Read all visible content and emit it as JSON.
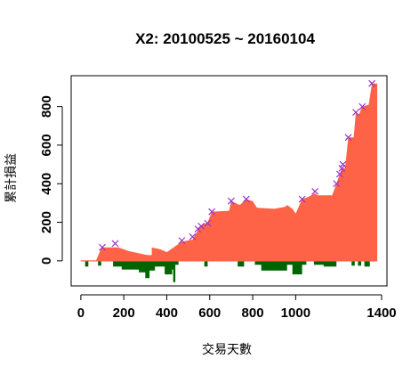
{
  "chart_data": {
    "type": "area",
    "title": "X2: 20100525 ~ 20160104",
    "xlabel": "交易天數",
    "ylabel": "累計損益",
    "x_ticks": [
      0,
      200,
      400,
      600,
      800,
      1000,
      1400
    ],
    "x_tick_labels": [
      "0",
      "200",
      "400",
      "600",
      "800",
      "1000",
      "1400"
    ],
    "y_ticks": [
      0,
      200,
      400,
      600,
      800
    ],
    "y_tick_labels": [
      "0",
      "200",
      "400",
      "600",
      "800"
    ],
    "xlim": [
      -45,
      1425
    ],
    "ylim": [
      -130,
      960
    ],
    "grid": false,
    "colors": {
      "cumulative_fill": "#ff6347",
      "drawdown_fill": "#006400",
      "peak_marker": "#9932cc",
      "axis": "#000000"
    },
    "cumulative": [
      [
        0,
        0
      ],
      [
        40,
        0
      ],
      [
        70,
        0
      ],
      [
        95,
        65
      ],
      [
        100,
        70
      ],
      [
        160,
        70
      ],
      [
        175,
        70
      ],
      [
        225,
        50
      ],
      [
        310,
        30
      ],
      [
        330,
        30
      ],
      [
        330,
        70
      ],
      [
        370,
        60
      ],
      [
        400,
        45
      ],
      [
        470,
        100
      ],
      [
        520,
        110
      ],
      [
        545,
        160
      ],
      [
        560,
        185
      ],
      [
        590,
        200
      ],
      [
        610,
        255
      ],
      [
        690,
        260
      ],
      [
        700,
        310
      ],
      [
        740,
        290
      ],
      [
        770,
        320
      ],
      [
        800,
        310
      ],
      [
        820,
        275
      ],
      [
        900,
        270
      ],
      [
        950,
        280
      ],
      [
        960,
        290
      ],
      [
        985,
        270
      ],
      [
        1000,
        245
      ],
      [
        1030,
        320
      ],
      [
        1055,
        330
      ],
      [
        1090,
        350
      ],
      [
        1100,
        340
      ],
      [
        1170,
        340
      ],
      [
        1190,
        400
      ],
      [
        1205,
        450
      ],
      [
        1215,
        480
      ],
      [
        1230,
        480
      ],
      [
        1245,
        640
      ],
      [
        1270,
        640
      ],
      [
        1280,
        770
      ],
      [
        1295,
        760
      ],
      [
        1310,
        800
      ],
      [
        1340,
        810
      ],
      [
        1355,
        920
      ],
      [
        1380,
        920
      ]
    ],
    "drawdown": [
      [
        20,
        0
      ],
      [
        20,
        -30
      ],
      [
        35,
        -30
      ],
      [
        35,
        0
      ],
      [
        80,
        0
      ],
      [
        80,
        -25
      ],
      [
        95,
        -25
      ],
      [
        95,
        0
      ],
      [
        150,
        0
      ],
      [
        150,
        -30
      ],
      [
        190,
        -30
      ],
      [
        190,
        -45
      ],
      [
        270,
        -45
      ],
      [
        270,
        -60
      ],
      [
        300,
        -60
      ],
      [
        300,
        -90
      ],
      [
        320,
        -90
      ],
      [
        320,
        -50
      ],
      [
        345,
        -50
      ],
      [
        345,
        -30
      ],
      [
        390,
        -30
      ],
      [
        390,
        -70
      ],
      [
        425,
        -70
      ],
      [
        425,
        -45
      ],
      [
        430,
        -45
      ],
      [
        430,
        -110
      ],
      [
        440,
        -110
      ],
      [
        440,
        -20
      ],
      [
        455,
        -20
      ],
      [
        455,
        0
      ],
      [
        575,
        0
      ],
      [
        575,
        -30
      ],
      [
        590,
        -30
      ],
      [
        590,
        0
      ],
      [
        730,
        0
      ],
      [
        730,
        -30
      ],
      [
        760,
        -30
      ],
      [
        760,
        0
      ],
      [
        810,
        0
      ],
      [
        810,
        -20
      ],
      [
        840,
        -20
      ],
      [
        840,
        -50
      ],
      [
        960,
        -50
      ],
      [
        960,
        -20
      ],
      [
        985,
        -20
      ],
      [
        985,
        -70
      ],
      [
        1030,
        -70
      ],
      [
        1030,
        -20
      ],
      [
        1050,
        -20
      ],
      [
        1050,
        0
      ],
      [
        1085,
        0
      ],
      [
        1085,
        -20
      ],
      [
        1130,
        -20
      ],
      [
        1130,
        -30
      ],
      [
        1190,
        -30
      ],
      [
        1190,
        0
      ],
      [
        1260,
        0
      ],
      [
        1260,
        -25
      ],
      [
        1275,
        -25
      ],
      [
        1275,
        0
      ],
      [
        1290,
        0
      ],
      [
        1290,
        -25
      ],
      [
        1305,
        -25
      ],
      [
        1305,
        0
      ],
      [
        1320,
        0
      ],
      [
        1320,
        -30
      ],
      [
        1345,
        -30
      ],
      [
        1345,
        0
      ],
      [
        1380,
        0
      ]
    ],
    "peaks": [
      [
        100,
        70
      ],
      [
        160,
        90
      ],
      [
        470,
        105
      ],
      [
        520,
        125
      ],
      [
        545,
        165
      ],
      [
        560,
        180
      ],
      [
        590,
        195
      ],
      [
        610,
        255
      ],
      [
        700,
        310
      ],
      [
        770,
        320
      ],
      [
        1030,
        320
      ],
      [
        1090,
        360
      ],
      [
        1190,
        400
      ],
      [
        1205,
        450
      ],
      [
        1215,
        480
      ],
      [
        1220,
        500
      ],
      [
        1245,
        640
      ],
      [
        1280,
        770
      ],
      [
        1310,
        800
      ],
      [
        1355,
        920
      ]
    ]
  }
}
